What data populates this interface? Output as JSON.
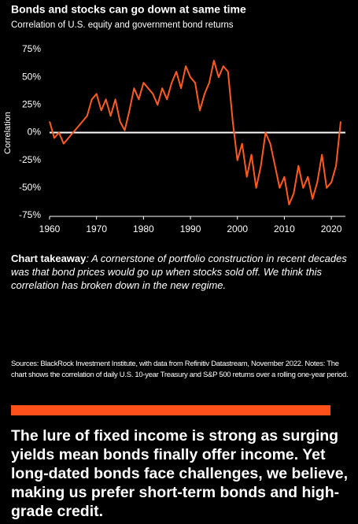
{
  "chart_data": {
    "type": "line",
    "title": "Bonds and stocks can go down at same time",
    "subtitle": "Correlation of U.S. equity and government bond returns",
    "ylabel": "Correlation",
    "color": "#ff5a1f",
    "x": [
      1960,
      1961,
      1962,
      1963,
      1964,
      1965,
      1966,
      1967,
      1968,
      1969,
      1970,
      1971,
      1972,
      1973,
      1974,
      1975,
      1976,
      1977,
      1978,
      1979,
      1980,
      1981,
      1982,
      1983,
      1984,
      1985,
      1986,
      1987,
      1988,
      1989,
      1990,
      1991,
      1992,
      1993,
      1994,
      1995,
      1996,
      1997,
      1998,
      1999,
      2000,
      2001,
      2002,
      2003,
      2004,
      2005,
      2006,
      2007,
      2008,
      2009,
      2010,
      2011,
      2012,
      2013,
      2014,
      2015,
      2016,
      2017,
      2018,
      2019,
      2020,
      2021,
      2022
    ],
    "values": [
      10,
      -5,
      0,
      -10,
      -5,
      0,
      5,
      10,
      15,
      30,
      35,
      20,
      30,
      15,
      30,
      10,
      2,
      20,
      40,
      30,
      45,
      40,
      35,
      25,
      40,
      30,
      45,
      55,
      40,
      60,
      50,
      45,
      20,
      35,
      45,
      65,
      50,
      60,
      55,
      10,
      -25,
      -10,
      -40,
      -20,
      -50,
      -30,
      0,
      -10,
      -30,
      -50,
      -40,
      -65,
      -55,
      -30,
      -50,
      -40,
      -60,
      -45,
      -20,
      -50,
      -45,
      -30,
      10
    ],
    "xlim": [
      1960,
      2023
    ],
    "ylim": [
      -75,
      75
    ],
    "xticks": [
      1960,
      1970,
      1980,
      1990,
      2000,
      2010,
      2020
    ],
    "yticks": [
      {
        "value": 75,
        "label": "75%"
      },
      {
        "value": 50,
        "label": "50%"
      },
      {
        "value": 25,
        "label": "25%"
      },
      {
        "value": 0,
        "label": "0%"
      },
      {
        "value": -25,
        "label": "-25%"
      },
      {
        "value": -50,
        "label": "-50%"
      },
      {
        "value": -75,
        "label": "-75%"
      }
    ]
  },
  "takeaway": {
    "label": "Chart takeaway",
    "text": ": A cornerstone of portfolio construction in recent decades was that bond prices would go up when stocks sold off. We think this correlation has broken down in the new regime."
  },
  "sources": "Sources: BlackRock Investment Institute, with data from Refinitiv Datastream, November 2022. Notes: The chart shows the correlation of daily U.S. 10-year Treasury and S&P 500 returns over a rolling one-year period.",
  "headline": "The lure of fixed income is strong as surging yields mean bonds finally offer income. Yet long-dated bonds face challenges, we believe, making us prefer short-term bonds and high-grade credit."
}
